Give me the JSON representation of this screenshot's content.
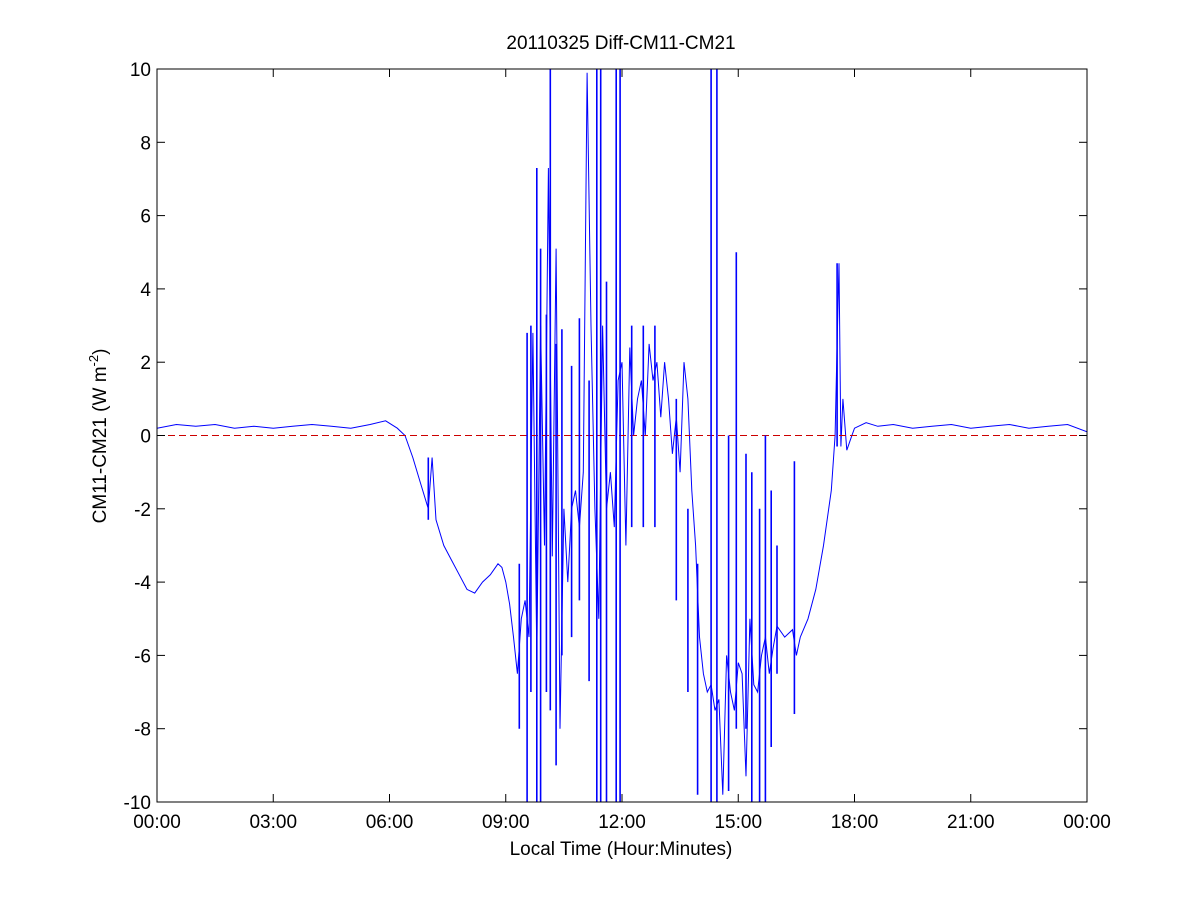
{
  "chart_data": {
    "type": "line",
    "title": "20110325 Diff-CM11-CM21",
    "xlabel": "Local Time (Hour:Minutes)",
    "ylabel": {
      "main": "CM11-CM21 (W m",
      "superscript": "-2",
      "close": ")"
    },
    "xlim": [
      0,
      24
    ],
    "ylim": [
      -10,
      10
    ],
    "x_ticks": [
      0,
      3,
      6,
      9,
      12,
      15,
      18,
      21,
      24
    ],
    "x_tick_labels": [
      "00:00",
      "03:00",
      "06:00",
      "09:00",
      "12:00",
      "15:00",
      "18:00",
      "21:00",
      "00:00"
    ],
    "y_ticks": [
      -10,
      -8,
      -6,
      -4,
      -2,
      0,
      2,
      4,
      6,
      8,
      10
    ],
    "y_tick_labels": [
      "-10",
      "-8",
      "-6",
      "-4",
      "-2",
      "0",
      "2",
      "4",
      "6",
      "8",
      "10"
    ],
    "grid": false,
    "x_unit": "hours of local time",
    "series": [
      {
        "color": "#0000ff",
        "style": "solid",
        "x": [
          0.0,
          0.5,
          1.0,
          1.5,
          2.0,
          2.5,
          3.0,
          3.5,
          4.0,
          4.5,
          5.0,
          5.5,
          5.9,
          6.2,
          6.4,
          6.6,
          6.8,
          7.0,
          7.1,
          7.2,
          7.4,
          7.6,
          7.8,
          8.0,
          8.2,
          8.4,
          8.6,
          8.8,
          8.9,
          9.0,
          9.1,
          9.2,
          9.3,
          9.4,
          9.5,
          9.6,
          9.7,
          9.8,
          9.9,
          10.0,
          10.1,
          10.2,
          10.3,
          10.4,
          10.5,
          10.6,
          10.7,
          10.8,
          10.9,
          11.0,
          11.1,
          11.2,
          11.3,
          11.4,
          11.5,
          11.6,
          11.7,
          11.8,
          11.9,
          12.0,
          12.1,
          12.2,
          12.3,
          12.4,
          12.5,
          12.6,
          12.7,
          12.8,
          12.9,
          13.0,
          13.1,
          13.2,
          13.3,
          13.4,
          13.5,
          13.6,
          13.7,
          13.8,
          13.9,
          14.0,
          14.1,
          14.2,
          14.3,
          14.4,
          14.5,
          14.6,
          14.7,
          14.8,
          14.9,
          15.0,
          15.1,
          15.2,
          15.3,
          15.4,
          15.5,
          15.6,
          15.7,
          15.8,
          15.9,
          16.0,
          16.2,
          16.4,
          16.5,
          16.6,
          16.8,
          17.0,
          17.2,
          17.4,
          17.5,
          17.55,
          17.6,
          17.65,
          17.7,
          17.8,
          17.9,
          18.0,
          18.3,
          18.6,
          19.0,
          19.5,
          20.0,
          20.5,
          21.0,
          21.5,
          22.0,
          22.5,
          23.0,
          23.5,
          24.0
        ],
        "y": [
          0.2,
          0.3,
          0.25,
          0.3,
          0.2,
          0.25,
          0.2,
          0.25,
          0.3,
          0.25,
          0.2,
          0.3,
          0.4,
          0.2,
          0.0,
          -0.6,
          -1.3,
          -2.0,
          -0.6,
          -2.3,
          -3.0,
          -3.4,
          -3.8,
          -4.2,
          -4.3,
          -4.0,
          -3.8,
          -3.5,
          -3.6,
          -4.0,
          -4.6,
          -5.5,
          -6.5,
          -5.0,
          -4.5,
          -5.5,
          2.8,
          -6.0,
          3.0,
          -3.0,
          7.3,
          -3.3,
          5.1,
          -8.0,
          -2.0,
          -4.0,
          -2.0,
          -1.5,
          -2.5,
          -1.0,
          9.9,
          3.0,
          -2.0,
          -5.0,
          3.0,
          -2.0,
          -1.0,
          -2.5,
          1.5,
          2.0,
          -3.0,
          2.4,
          0.0,
          1.0,
          1.5,
          0.0,
          2.5,
          1.5,
          2.0,
          0.5,
          2.0,
          1.0,
          -0.5,
          0.5,
          -1.0,
          2.0,
          1.0,
          -1.5,
          -3.0,
          -5.5,
          -6.5,
          -7.0,
          -6.8,
          -7.5,
          -7.2,
          -9.8,
          -6.0,
          -7.0,
          -7.5,
          -6.2,
          -6.5,
          -9.3,
          -5.0,
          -6.8,
          -7.0,
          -6.0,
          -5.5,
          -6.5,
          -5.8,
          -5.2,
          -5.5,
          -5.3,
          -6.0,
          -5.5,
          -5.0,
          -4.2,
          -3.0,
          -1.5,
          0.0,
          2.5,
          4.7,
          -0.3,
          1.0,
          -0.4,
          -0.1,
          0.2,
          0.35,
          0.25,
          0.3,
          0.2,
          0.25,
          0.3,
          0.2,
          0.25,
          0.3,
          0.2,
          0.25,
          0.3,
          0.1
        ]
      },
      {
        "color": "#cc0000",
        "style": "dashed",
        "x": [
          0,
          24
        ],
        "y": [
          0,
          0
        ]
      }
    ],
    "spikes": [
      {
        "x": 9.35,
        "top": -3.5,
        "bottom": -8.0
      },
      {
        "x": 9.55,
        "top": 2.8,
        "bottom": -10.0
      },
      {
        "x": 9.65,
        "top": 3.0,
        "bottom": -7.0
      },
      {
        "x": 9.8,
        "top": 7.3,
        "bottom": -10.0
      },
      {
        "x": 9.9,
        "top": 5.1,
        "bottom": -10.0
      },
      {
        "x": 10.05,
        "top": 3.3,
        "bottom": -7.0
      },
      {
        "x": 10.15,
        "top": 10.0,
        "bottom": -7.5
      },
      {
        "x": 10.3,
        "top": 2.5,
        "bottom": -9.0
      },
      {
        "x": 10.45,
        "top": 2.9,
        "bottom": -6.0
      },
      {
        "x": 10.7,
        "top": 1.9,
        "bottom": -5.5
      },
      {
        "x": 10.9,
        "top": 3.2,
        "bottom": -4.5
      },
      {
        "x": 11.15,
        "top": 1.5,
        "bottom": -6.7
      },
      {
        "x": 11.35,
        "top": 10.0,
        "bottom": -10.0
      },
      {
        "x": 11.45,
        "top": 10.0,
        "bottom": -10.0
      },
      {
        "x": 11.6,
        "top": 4.2,
        "bottom": -10.0
      },
      {
        "x": 11.85,
        "top": 10.0,
        "bottom": -10.0
      },
      {
        "x": 11.95,
        "top": 10.0,
        "bottom": -10.0
      },
      {
        "x": 12.25,
        "top": 3.0,
        "bottom": -2.5
      },
      {
        "x": 12.55,
        "top": 3.0,
        "bottom": -2.5
      },
      {
        "x": 12.85,
        "top": 3.0,
        "bottom": -2.5
      },
      {
        "x": 13.4,
        "top": 1.0,
        "bottom": -4.5
      },
      {
        "x": 13.7,
        "top": -2.0,
        "bottom": -7.0
      },
      {
        "x": 13.95,
        "top": -3.5,
        "bottom": -9.8
      },
      {
        "x": 14.3,
        "top": 10.0,
        "bottom": -10.0
      },
      {
        "x": 14.45,
        "top": 10.0,
        "bottom": -10.0
      },
      {
        "x": 14.75,
        "top": 0.0,
        "bottom": -9.7
      },
      {
        "x": 14.95,
        "top": 5.0,
        "bottom": -8.0
      },
      {
        "x": 15.2,
        "top": -0.5,
        "bottom": -8.0
      },
      {
        "x": 15.35,
        "top": -1.0,
        "bottom": -10.0
      },
      {
        "x": 15.55,
        "top": -2.0,
        "bottom": -10.0
      },
      {
        "x": 15.7,
        "top": 0.0,
        "bottom": -10.0
      },
      {
        "x": 15.85,
        "top": -1.5,
        "bottom": -8.5
      },
      {
        "x": 16.0,
        "top": -3.0,
        "bottom": -6.5
      },
      {
        "x": 16.45,
        "top": -0.7,
        "bottom": -7.6
      },
      {
        "x": 17.55,
        "top": 4.7,
        "bottom": -0.3
      },
      {
        "x": 7.0,
        "top": -0.6,
        "bottom": -2.3
      }
    ]
  }
}
